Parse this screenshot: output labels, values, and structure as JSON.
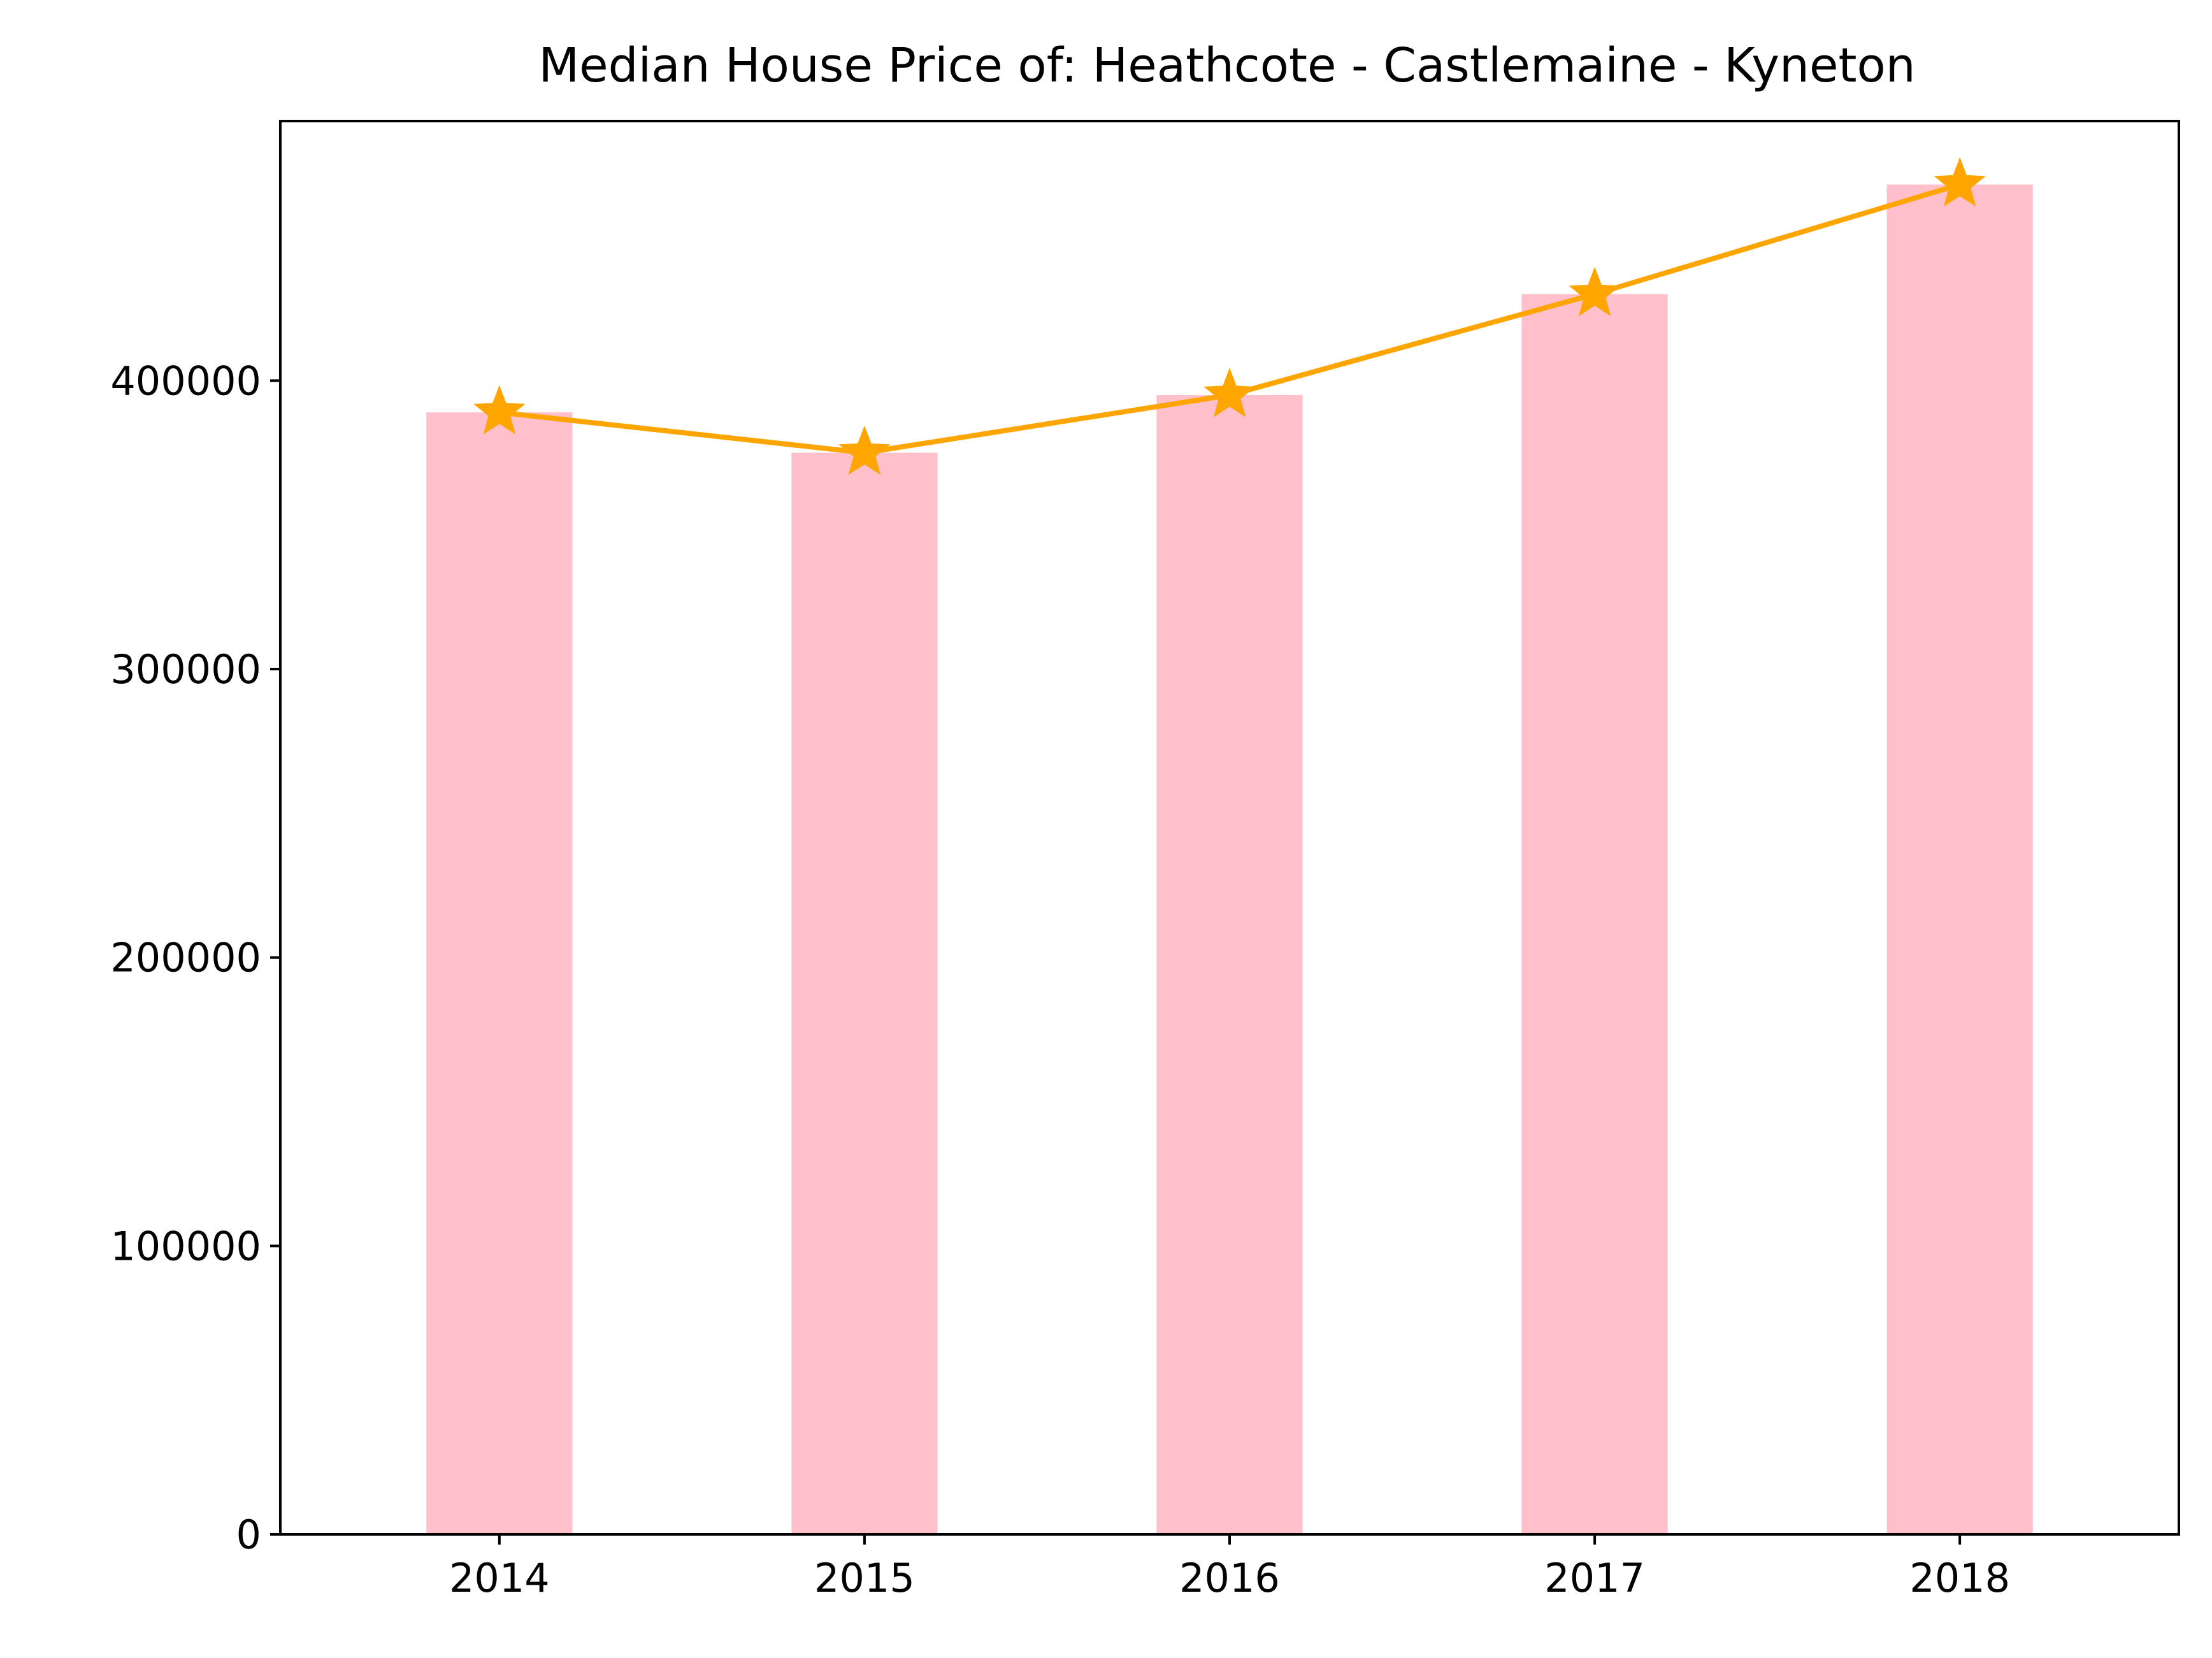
{
  "chart_data": {
    "type": "bar",
    "title": "Median House Price of: Heathcote - Castlemaine - Kyneton",
    "xlabel": "",
    "ylabel": "",
    "categories": [
      "2014",
      "2015",
      "2016",
      "2017",
      "2018"
    ],
    "values": [
      389000,
      375000,
      395000,
      430000,
      468000
    ],
    "overlay_line": {
      "type": "line",
      "marker": "star",
      "values": [
        389000,
        375000,
        395000,
        430000,
        468000
      ]
    },
    "ylim": [
      0,
      490000
    ],
    "yticks": [
      0,
      100000,
      200000,
      300000,
      400000
    ],
    "ytick_labels": [
      "0",
      "100000",
      "200000",
      "300000",
      "400000"
    ],
    "grid": false,
    "legend": "none",
    "colors": {
      "bar": "#ffc0cb",
      "line": "#ffa500",
      "axes": "#000000"
    }
  }
}
